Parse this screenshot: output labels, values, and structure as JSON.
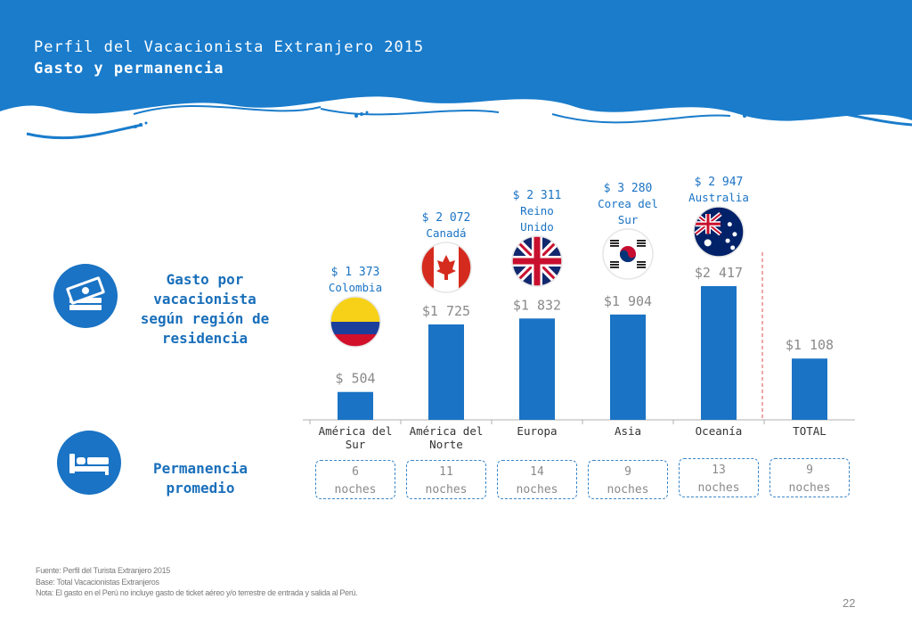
{
  "header": {
    "title": "Perfil del Vacacionista Extranjero 2015",
    "subtitle": "Gasto y permanencia"
  },
  "sections": {
    "spending_label": "Gasto por vacacionista según región de residencia",
    "stay_label": "Permanencia promedio"
  },
  "colors": {
    "primary_blue": "#1a73c4",
    "header_blue": "#1a7ccb",
    "light_blue": "#5fb0e8",
    "reference_line": "#e05050"
  },
  "icons": {
    "spending": "money-stack-icon",
    "stay": "bed-icon"
  },
  "chart_data": {
    "type": "bar",
    "categories": [
      "América del Sur",
      "América del Norte",
      "Europa",
      "Asia",
      "Oceanía",
      "TOTAL"
    ],
    "values": [
      504,
      1725,
      1832,
      1904,
      2417,
      1108
    ],
    "value_labels": [
      "$ 504",
      "$1 725",
      "$1 832",
      "$1 904",
      "$2 417",
      "$1 108"
    ],
    "highlights": [
      {
        "category": "América del Sur",
        "value_label": "$ 1 373",
        "country": "Colombia",
        "flag": "colombia-flag-icon"
      },
      {
        "category": "América del Norte",
        "value_label": "$ 2 072",
        "country": "Canadá",
        "flag": "canada-flag-icon"
      },
      {
        "category": "Europa",
        "value_label": "$ 2 311",
        "country": "Reino Unido",
        "flag": "uk-flag-icon"
      },
      {
        "category": "Asia",
        "value_label": "$ 3 280",
        "country": "Corea del Sur",
        "flag": "south-korea-flag-icon"
      },
      {
        "category": "Oceanía",
        "value_label": "$ 2 947",
        "country": "Australia",
        "flag": "australia-flag-icon"
      }
    ],
    "stays": [
      {
        "nights": "6",
        "unit": "noches"
      },
      {
        "nights": "11",
        "unit": "noches"
      },
      {
        "nights": "14",
        "unit": "noches"
      },
      {
        "nights": "9",
        "unit": "noches"
      },
      {
        "nights": "13",
        "unit": "noches"
      },
      {
        "nights": "9",
        "unit": "noches"
      }
    ],
    "ylim": [
      0,
      2900
    ],
    "reference_line": "dashed line separating regions from TOTAL"
  },
  "footer": {
    "source": "Fuente: Perfil del Turista Extranjero 2015",
    "base": "Base: Total Vacacionistas Extranjeros",
    "note": "Nota: El gasto en el Perú no incluye gasto de ticket aéreo y/o terrestre de entrada y salida al Perú."
  },
  "page_number": "22"
}
